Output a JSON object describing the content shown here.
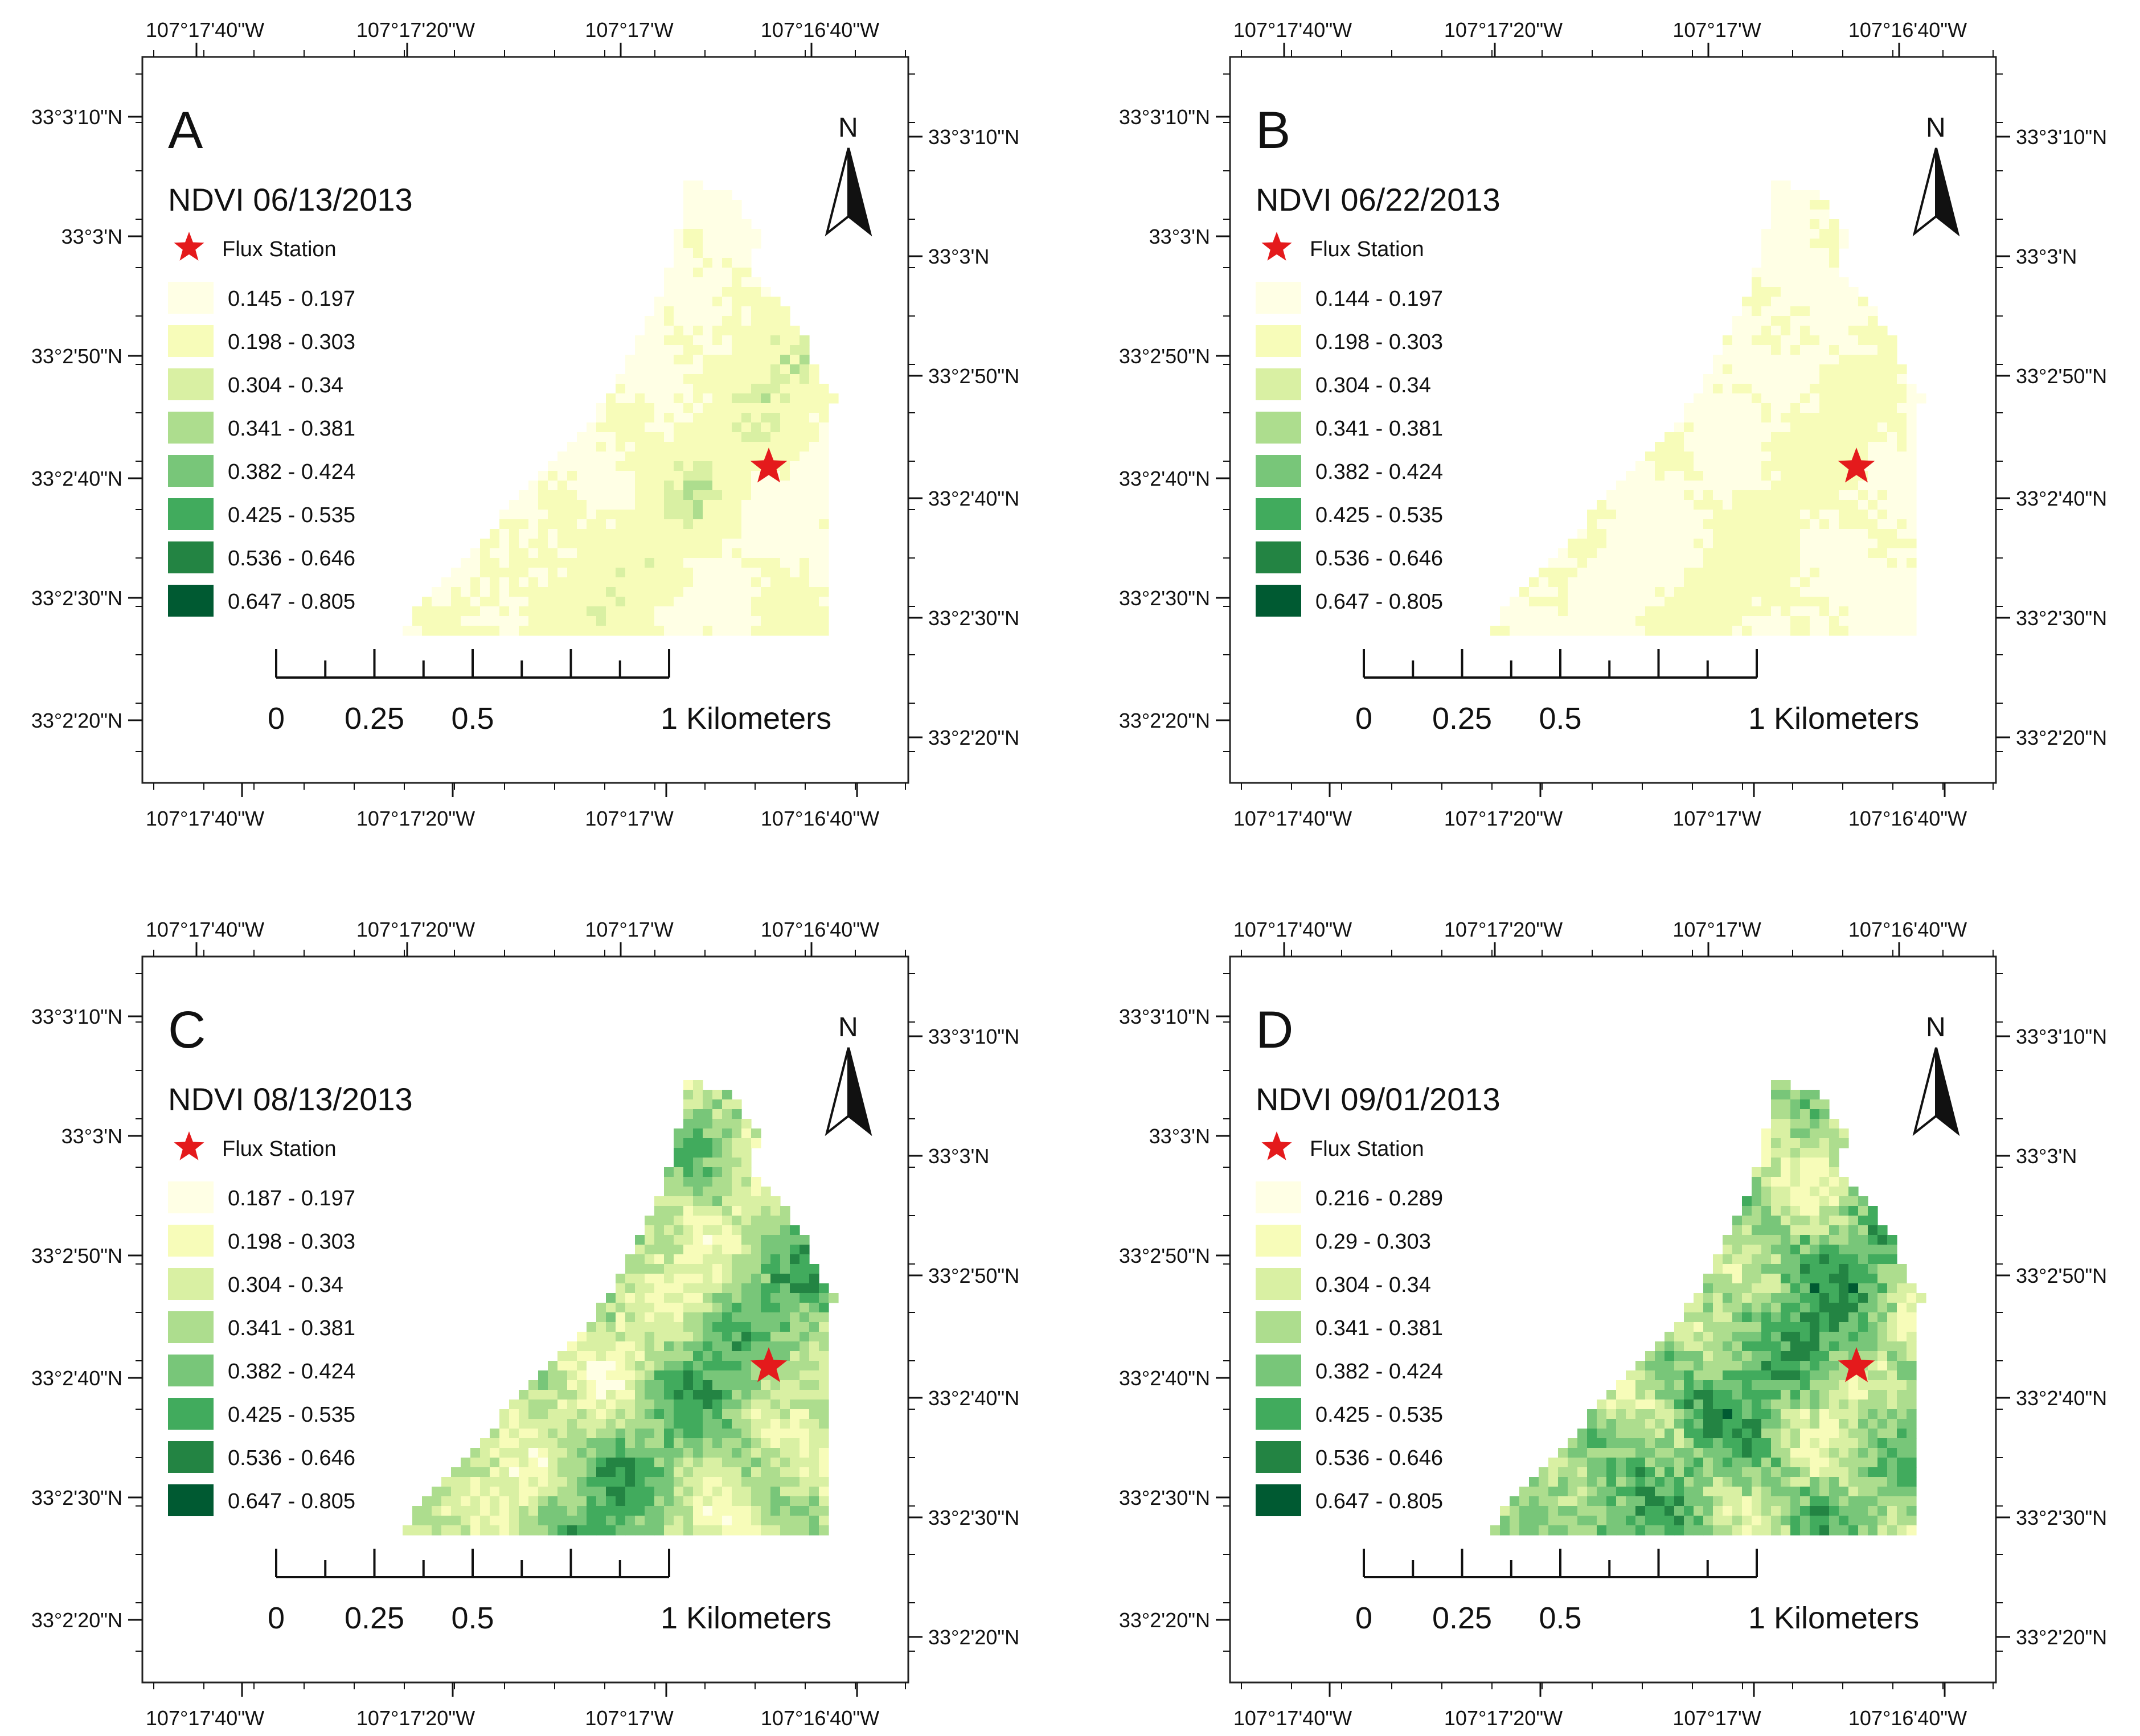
{
  "star_color": "#e41a1c",
  "north_label": "N",
  "flux_label": "Flux Station",
  "scale_labels": [
    "0",
    "0.25",
    "0.5",
    "1 Kilometers"
  ],
  "class_colors": [
    "#ffffe5",
    "#f7fcb9",
    "#d9f0a3",
    "#addd8e",
    "#78c679",
    "#41ab5d",
    "#238443",
    "#005a32"
  ],
  "panels": [
    {
      "letter": "A",
      "title": "NDVI 06/13/2013",
      "ranges": [
        "0.145 - 0.197",
        "0.198 - 0.303",
        "0.304 - 0.34",
        "0.341 - 0.381",
        "0.382 - 0.424",
        "0.425 - 0.535",
        "0.536 - 0.646",
        "0.647 - 0.805"
      ],
      "top_lon": [
        "107°17'40\"W",
        "107°17'20\"W",
        "107°17'W",
        "107°16'40\"W"
      ],
      "bottom_lon": [
        "107°17'40\"W",
        "107°17'20\"W",
        "107°17'W",
        "107°16'40\"W"
      ],
      "left_lat": [
        "33°3'10\"N",
        "33°3'N",
        "33°2'50\"N",
        "33°2'40\"N",
        "33°2'30\"N",
        "33°2'20\"N"
      ],
      "right_lat": [
        "33°3'10\"N",
        "33°3'N",
        "33°2'50\"N",
        "33°2'40\"N",
        "33°2'30\"N",
        "33°2'20\"N"
      ],
      "greenness": 0.18
    },
    {
      "letter": "B",
      "title": "NDVI 06/22/2013",
      "ranges": [
        "0.144 - 0.197",
        "0.198 - 0.303",
        "0.304 - 0.34",
        "0.341 - 0.381",
        "0.382 - 0.424",
        "0.425 - 0.535",
        "0.536 - 0.646",
        "0.647 - 0.805"
      ],
      "top_lon": [
        "107°17'40\"W",
        "107°17'20\"W",
        "107°17'W",
        "107°16'40\"W"
      ],
      "bottom_lon": [
        "107°17'40\"W",
        "107°17'20\"W",
        "107°17'W",
        "107°16'40\"W"
      ],
      "left_lat": [
        "33°3'10\"N",
        "33°3'N",
        "33°2'50\"N",
        "33°2'40\"N",
        "33°2'30\"N",
        "33°2'20\"N"
      ],
      "right_lat": [
        "33°3'10\"N",
        "33°3'N",
        "33°2'50\"N",
        "33°2'40\"N",
        "33°2'30\"N",
        "33°2'20\"N"
      ],
      "greenness": 0.08
    },
    {
      "letter": "C",
      "title": "NDVI 08/13/2013",
      "ranges": [
        "0.187 - 0.197",
        "0.198 - 0.303",
        "0.304 - 0.34",
        "0.341 - 0.381",
        "0.382 - 0.424",
        "0.425 - 0.535",
        "0.536 - 0.646",
        "0.647 - 0.805"
      ],
      "top_lon": [
        "107°17'40\"W",
        "107°17'20\"W",
        "107°17'W",
        "107°16'40\"W"
      ],
      "bottom_lon": [
        "107°17'40\"W",
        "107°17'20\"W",
        "107°17'W",
        "107°16'40\"W"
      ],
      "left_lat": [
        "33°3'10\"N",
        "33°3'N",
        "33°2'50\"N",
        "33°2'40\"N",
        "33°2'30\"N",
        "33°2'20\"N"
      ],
      "right_lat": [
        "33°3'10\"N",
        "33°3'N",
        "33°2'50\"N",
        "33°2'40\"N",
        "33°2'30\"N",
        "33°2'20\"N"
      ],
      "greenness": 0.62
    },
    {
      "letter": "D",
      "title": "NDVI 09/01/2013",
      "ranges": [
        "0.216 - 0.289",
        "0.29 - 0.303",
        "0.304 - 0.34",
        "0.341 - 0.381",
        "0.382 - 0.424",
        "0.425 - 0.535",
        "0.536 - 0.646",
        "0.647 - 0.805"
      ],
      "top_lon": [
        "107°17'40\"W",
        "107°17'20\"W",
        "107°17'W",
        "107°16'40\"W"
      ],
      "bottom_lon": [
        "107°17'40\"W",
        "107°17'20\"W",
        "107°17'W",
        "107°16'40\"W"
      ],
      "left_lat": [
        "33°3'10\"N",
        "33°3'N",
        "33°2'50\"N",
        "33°2'40\"N",
        "33°2'30\"N",
        "33°2'20\"N"
      ],
      "right_lat": [
        "33°3'10\"N",
        "33°3'N",
        "33°2'50\"N",
        "33°2'40\"N",
        "33°2'30\"N",
        "33°2'20\"N"
      ],
      "greenness": 0.75
    }
  ]
}
